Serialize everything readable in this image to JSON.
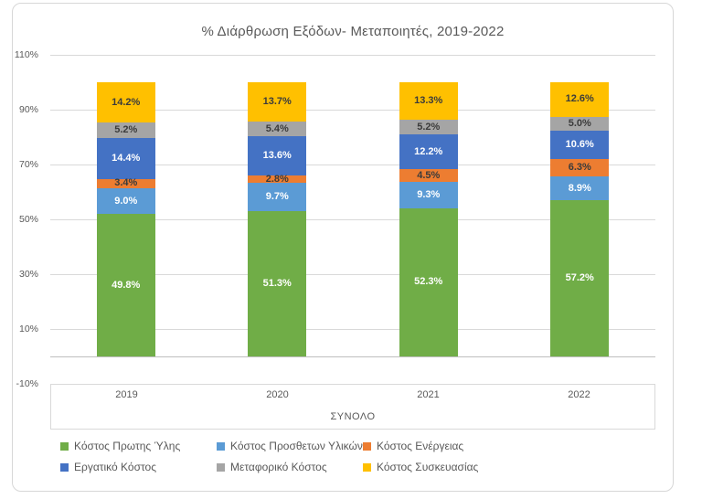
{
  "title": "% Διάρθρωση Εξόδων- Μεταποιητές, 2019-2022",
  "chart_data": {
    "type": "bar",
    "subtype": "stacked-100-percent",
    "title": "% Διάρθρωση Εξόδων- Μεταποιητές, 2019-2022",
    "categories": [
      "2019",
      "2020",
      "2021",
      "2022"
    ],
    "group_label": "ΣΥΝΟΛΟ",
    "series": [
      {
        "name": "Κόστος Πρωτης Ύλης",
        "color": "#70AD47",
        "label_color": "#ffffff",
        "values": [
          49.8,
          51.3,
          52.3,
          57.2
        ]
      },
      {
        "name": "Κόστος Προσθετων Υλικών",
        "color": "#5B9BD5",
        "label_color": "#ffffff",
        "values": [
          9.0,
          9.7,
          9.3,
          8.9
        ]
      },
      {
        "name": "Κόστος Ενέργειας",
        "color": "#ED7D31",
        "label_color": "#3b3b3b",
        "values": [
          3.4,
          2.8,
          4.5,
          6.3
        ]
      },
      {
        "name": "Εργατικό Κόστος",
        "color": "#4472C4",
        "label_color": "#ffffff",
        "values": [
          14.4,
          13.6,
          12.2,
          10.6
        ]
      },
      {
        "name": "Μεταφορικό Κόστος",
        "color": "#A5A5A5",
        "label_color": "#3b3b3b",
        "values": [
          5.2,
          5.4,
          5.2,
          5.0
        ]
      },
      {
        "name": "Κόστος Συσκευασίας",
        "color": "#FFC000",
        "label_color": "#3b3b3b",
        "values": [
          14.2,
          13.7,
          13.3,
          12.6
        ]
      }
    ],
    "y_ticks": [
      "110%",
      "90%",
      "70%",
      "50%",
      "30%",
      "10%",
      "-10%"
    ],
    "ylim": [
      -10,
      110
    ],
    "y_major_unit": 20,
    "grid": true,
    "legend_position": "bottom",
    "value_suffix": "%",
    "colors": {
      "gridline": "#d9d9d9",
      "axis_line": "#bfbfbf",
      "text": "#595959",
      "frame_border": "#d7d7d7",
      "background": "#ffffff"
    }
  }
}
